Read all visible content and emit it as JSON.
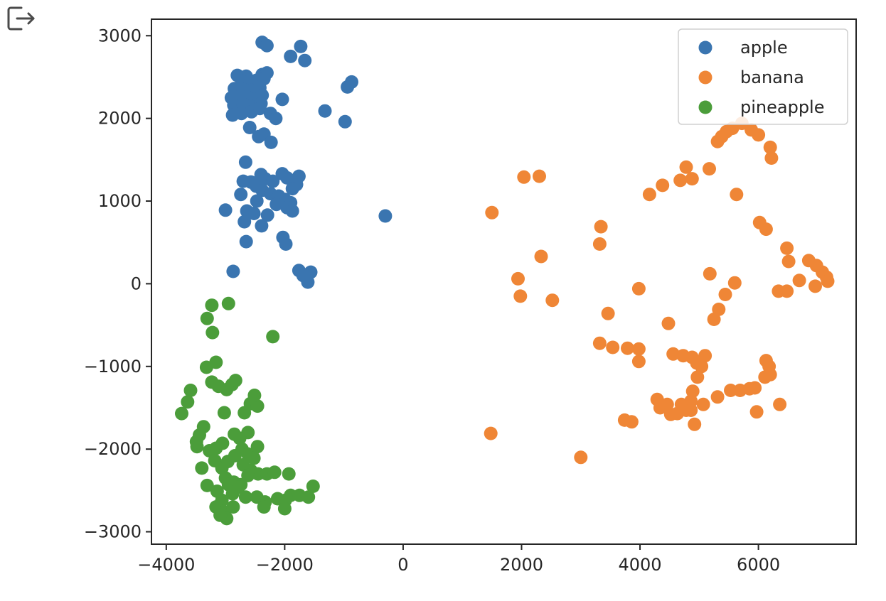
{
  "toolbar": {
    "export_icon": "export-output-icon"
  },
  "chart_data": {
    "type": "scatter",
    "title": "",
    "xlabel": "",
    "ylabel": "",
    "xlim": [
      -4250,
      7650
    ],
    "ylim": [
      -3150,
      3200
    ],
    "xticks": [
      -4000,
      -2000,
      0,
      2000,
      4000,
      6000
    ],
    "yticks": [
      -3000,
      -2000,
      -1000,
      0,
      1000,
      2000,
      3000
    ],
    "xtick_labels": [
      "−4000",
      "−2000",
      "0",
      "2000",
      "4000",
      "6000"
    ],
    "ytick_labels": [
      "−3000",
      "−2000",
      "−1000",
      "0",
      "1000",
      "2000",
      "3000"
    ],
    "grid": false,
    "legend_position": "top-right",
    "series": [
      {
        "name": "apple",
        "color": "#3a75b0",
        "points": [
          [
            -2380,
            2920
          ],
          [
            -2300,
            2880
          ],
          [
            -1730,
            2870
          ],
          [
            -1900,
            2750
          ],
          [
            -1660,
            2700
          ],
          [
            -2800,
            2520
          ],
          [
            -2650,
            2510
          ],
          [
            -2380,
            2530
          ],
          [
            -2300,
            2550
          ],
          [
            -2720,
            2450
          ],
          [
            -2580,
            2440
          ],
          [
            -2480,
            2460
          ],
          [
            -2350,
            2480
          ],
          [
            -2850,
            2360
          ],
          [
            -2700,
            2350
          ],
          [
            -2560,
            2340
          ],
          [
            -2420,
            2370
          ],
          [
            -2900,
            2250
          ],
          [
            -2780,
            2240
          ],
          [
            -2640,
            2260
          ],
          [
            -2500,
            2230
          ],
          [
            -2380,
            2280
          ],
          [
            -2860,
            2160
          ],
          [
            -2700,
            2170
          ],
          [
            -2550,
            2140
          ],
          [
            -2400,
            2180
          ],
          [
            -2880,
            2040
          ],
          [
            -2730,
            2060
          ],
          [
            -2560,
            2080
          ],
          [
            -2420,
            2120
          ],
          [
            -2040,
            2230
          ],
          [
            -2240,
            2060
          ],
          [
            -2150,
            2000
          ],
          [
            -1320,
            2090
          ],
          [
            -980,
            1960
          ],
          [
            -940,
            2380
          ],
          [
            -870,
            2440
          ],
          [
            -2590,
            1890
          ],
          [
            -2440,
            1780
          ],
          [
            -2350,
            1810
          ],
          [
            -2230,
            1710
          ],
          [
            -2660,
            1470
          ],
          [
            -2700,
            1240
          ],
          [
            -2570,
            1230
          ],
          [
            -2460,
            1210
          ],
          [
            -2400,
            1320
          ],
          [
            -2330,
            1270
          ],
          [
            -2200,
            1240
          ],
          [
            -2040,
            1330
          ],
          [
            -1960,
            1280
          ],
          [
            -1760,
            1300
          ],
          [
            -1800,
            1200
          ],
          [
            -1870,
            1150
          ],
          [
            -2480,
            1180
          ],
          [
            -2380,
            1130
          ],
          [
            -2240,
            1090
          ],
          [
            -2100,
            1060
          ],
          [
            -2000,
            1020
          ],
          [
            -1900,
            980
          ],
          [
            -2740,
            1080
          ],
          [
            -2470,
            1000
          ],
          [
            -2140,
            960
          ],
          [
            -1960,
            920
          ],
          [
            -1870,
            880
          ],
          [
            -2640,
            880
          ],
          [
            -2520,
            850
          ],
          [
            -2290,
            830
          ],
          [
            -2390,
            700
          ],
          [
            -2680,
            750
          ],
          [
            -2030,
            560
          ],
          [
            -1980,
            480
          ],
          [
            -3000,
            890
          ],
          [
            -2650,
            510
          ],
          [
            -2870,
            150
          ],
          [
            -1760,
            160
          ],
          [
            -1690,
            100
          ],
          [
            -1560,
            140
          ],
          [
            -1610,
            20
          ],
          [
            -300,
            820
          ]
        ]
      },
      {
        "name": "banana",
        "color": "#ef8636",
        "points": [
          [
            5720,
            1940
          ],
          [
            5560,
            1880
          ],
          [
            5460,
            1840
          ],
          [
            5380,
            1780
          ],
          [
            5310,
            1720
          ],
          [
            5880,
            1860
          ],
          [
            6000,
            1800
          ],
          [
            6200,
            1650
          ],
          [
            6220,
            1520
          ],
          [
            2040,
            1290
          ],
          [
            2300,
            1300
          ],
          [
            4780,
            1410
          ],
          [
            5170,
            1390
          ],
          [
            4680,
            1250
          ],
          [
            4880,
            1270
          ],
          [
            4380,
            1190
          ],
          [
            4160,
            1080
          ],
          [
            5630,
            1080
          ],
          [
            1500,
            860
          ],
          [
            3340,
            690
          ],
          [
            3320,
            480
          ],
          [
            6020,
            740
          ],
          [
            6130,
            660
          ],
          [
            6480,
            430
          ],
          [
            6510,
            270
          ],
          [
            6850,
            280
          ],
          [
            6980,
            220
          ],
          [
            7080,
            140
          ],
          [
            7150,
            80
          ],
          [
            7170,
            30
          ],
          [
            6690,
            40
          ],
          [
            6480,
            -90
          ],
          [
            6340,
            -90
          ],
          [
            6960,
            -30
          ],
          [
            2330,
            330
          ],
          [
            1940,
            60
          ],
          [
            1980,
            -150
          ],
          [
            2520,
            -200
          ],
          [
            3980,
            -60
          ],
          [
            5180,
            120
          ],
          [
            5600,
            10
          ],
          [
            5440,
            -130
          ],
          [
            3460,
            -360
          ],
          [
            5330,
            -310
          ],
          [
            5250,
            -430
          ],
          [
            4480,
            -480
          ],
          [
            3320,
            -720
          ],
          [
            3540,
            -770
          ],
          [
            3790,
            -780
          ],
          [
            3980,
            -790
          ],
          [
            3980,
            -940
          ],
          [
            4560,
            -850
          ],
          [
            4730,
            -870
          ],
          [
            4880,
            -890
          ],
          [
            4960,
            -960
          ],
          [
            5100,
            -870
          ],
          [
            5040,
            -1000
          ],
          [
            4970,
            -1130
          ],
          [
            4890,
            -1300
          ],
          [
            4860,
            -1420
          ],
          [
            4780,
            -1530
          ],
          [
            4630,
            -1570
          ],
          [
            4520,
            -1580
          ],
          [
            4290,
            -1400
          ],
          [
            4340,
            -1500
          ],
          [
            4460,
            -1460
          ],
          [
            4700,
            -1460
          ],
          [
            4860,
            -1530
          ],
          [
            4920,
            -1700
          ],
          [
            5070,
            -1460
          ],
          [
            5310,
            -1370
          ],
          [
            5530,
            -1290
          ],
          [
            5690,
            -1290
          ],
          [
            5850,
            -1270
          ],
          [
            5940,
            -1260
          ],
          [
            6110,
            -1130
          ],
          [
            6200,
            -1100
          ],
          [
            6130,
            -930
          ],
          [
            6180,
            -1000
          ],
          [
            5970,
            -1550
          ],
          [
            6360,
            -1460
          ],
          [
            3740,
            -1650
          ],
          [
            3860,
            -1670
          ],
          [
            1480,
            -1810
          ],
          [
            3000,
            -2100
          ]
        ]
      },
      {
        "name": "pineapple",
        "color": "#4b9d3a",
        "points": [
          [
            -3230,
            -260
          ],
          [
            -2950,
            -240
          ],
          [
            -3310,
            -420
          ],
          [
            -3220,
            -590
          ],
          [
            -2200,
            -640
          ],
          [
            -3320,
            -1010
          ],
          [
            -3160,
            -950
          ],
          [
            -3230,
            -1190
          ],
          [
            -3120,
            -1240
          ],
          [
            -2980,
            -1280
          ],
          [
            -2890,
            -1220
          ],
          [
            -2830,
            -1170
          ],
          [
            -3590,
            -1290
          ],
          [
            -3640,
            -1430
          ],
          [
            -3740,
            -1570
          ],
          [
            -3020,
            -1560
          ],
          [
            -2680,
            -1560
          ],
          [
            -2580,
            -1450
          ],
          [
            -2460,
            -1480
          ],
          [
            -2510,
            -1350
          ],
          [
            -3370,
            -1730
          ],
          [
            -3440,
            -1830
          ],
          [
            -3480,
            -1970
          ],
          [
            -3490,
            -1910
          ],
          [
            -2850,
            -1820
          ],
          [
            -2620,
            -1800
          ],
          [
            -2760,
            -1870
          ],
          [
            -3270,
            -2020
          ],
          [
            -3160,
            -1990
          ],
          [
            -3050,
            -1930
          ],
          [
            -2720,
            -2000
          ],
          [
            -2620,
            -2060
          ],
          [
            -2460,
            -1970
          ],
          [
            -2520,
            -2110
          ],
          [
            -3400,
            -2230
          ],
          [
            -3180,
            -2140
          ],
          [
            -3060,
            -2230
          ],
          [
            -2960,
            -2150
          ],
          [
            -2840,
            -2080
          ],
          [
            -2700,
            -2190
          ],
          [
            -2570,
            -2260
          ],
          [
            -2450,
            -2300
          ],
          [
            -2300,
            -2300
          ],
          [
            -2170,
            -2280
          ],
          [
            -3000,
            -2350
          ],
          [
            -2860,
            -2400
          ],
          [
            -2740,
            -2430
          ],
          [
            -2620,
            -2320
          ],
          [
            -3310,
            -2440
          ],
          [
            -3140,
            -2510
          ],
          [
            -2950,
            -2430
          ],
          [
            -2880,
            -2540
          ],
          [
            -2780,
            -2460
          ],
          [
            -2660,
            -2580
          ],
          [
            -1930,
            -2300
          ],
          [
            -2470,
            -2580
          ],
          [
            -2330,
            -2640
          ],
          [
            -2350,
            -2700
          ],
          [
            -2120,
            -2600
          ],
          [
            -1990,
            -2620
          ],
          [
            -2000,
            -2720
          ],
          [
            -1900,
            -2560
          ],
          [
            -1750,
            -2560
          ],
          [
            -1600,
            -2580
          ],
          [
            -1520,
            -2450
          ],
          [
            -3060,
            -2620
          ],
          [
            -3160,
            -2700
          ],
          [
            -3020,
            -2760
          ],
          [
            -2980,
            -2840
          ],
          [
            -3090,
            -2800
          ],
          [
            -2870,
            -2700
          ]
        ]
      }
    ]
  }
}
